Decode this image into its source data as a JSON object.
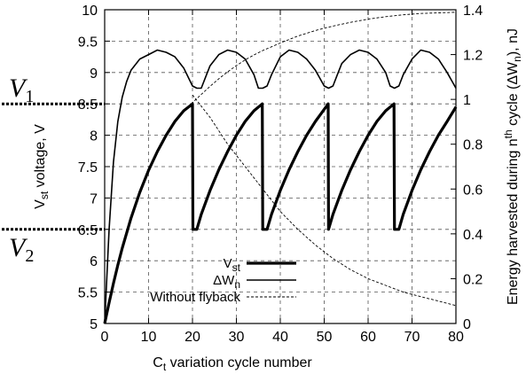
{
  "chart_data": {
    "type": "line",
    "xlabel": {
      "main": "C",
      "sub": "t",
      "rest": " variation cycle number"
    },
    "ylabel_left": {
      "main": "V",
      "sub": "st",
      "rest": " voltage, V"
    },
    "ylabel_right": {
      "pre": "Energy harvested during n",
      "sup": "th",
      "mid": " cycle (ΔW",
      "sub": "n",
      "post": "), nJ"
    },
    "xlim": [
      0,
      80
    ],
    "ylim_left": [
      5,
      10
    ],
    "ylim_right": [
      0,
      1.4
    ],
    "x_ticks": [
      "0",
      "10",
      "20",
      "30",
      "40",
      "50",
      "60",
      "70",
      "80"
    ],
    "y_left_ticks": [
      "5",
      "5.5",
      "6",
      "6.5",
      "7",
      "7.5",
      "8",
      "8.5",
      "9",
      "9.5",
      "10"
    ],
    "y_right_ticks": [
      "0",
      "0.2",
      "0.4",
      "0.6",
      "0.8",
      "1",
      "1.2",
      "1.4"
    ],
    "grid": true,
    "markers": [
      {
        "label": "V",
        "sub": "1",
        "y": 8.5
      },
      {
        "label": "V",
        "sub": "2",
        "y": 6.5
      }
    ],
    "series": [
      {
        "name": "Vst",
        "legend_main": "V",
        "legend_sub": "st",
        "axis": "left",
        "style": "thick",
        "x": [
          0,
          1,
          2,
          3,
          4,
          6,
          8,
          10,
          12,
          14,
          16,
          18,
          20,
          20.1,
          21,
          22,
          24,
          26,
          28,
          30,
          32,
          34,
          35.9,
          36,
          37,
          38,
          40,
          42,
          44,
          46,
          48,
          50.9,
          51,
          52,
          54,
          56,
          58,
          60,
          62,
          64,
          65.9,
          66,
          67,
          68,
          70,
          72,
          74,
          76,
          78,
          80
        ],
        "y": [
          5.0,
          5.33,
          5.64,
          5.93,
          6.2,
          6.68,
          7.09,
          7.44,
          7.74,
          8.0,
          8.22,
          8.39,
          8.5,
          6.5,
          6.5,
          6.74,
          7.12,
          7.45,
          7.74,
          8.0,
          8.22,
          8.39,
          8.5,
          6.5,
          6.5,
          6.74,
          7.12,
          7.45,
          7.74,
          8.0,
          8.22,
          8.5,
          6.5,
          6.74,
          7.12,
          7.45,
          7.74,
          8.0,
          8.22,
          8.39,
          8.5,
          6.5,
          6.5,
          6.74,
          7.12,
          7.45,
          7.74,
          8.0,
          8.22,
          8.45
        ]
      },
      {
        "name": "ΔWn",
        "legend_main": "ΔW",
        "legend_sub": "n",
        "axis": "right",
        "style": "medium",
        "x": [
          0,
          1,
          2,
          3,
          4,
          5,
          6,
          8,
          10,
          12,
          14,
          16,
          18,
          20,
          21,
          22,
          23,
          24,
          26,
          28,
          30,
          32,
          34,
          35,
          36,
          37,
          38,
          40,
          42,
          44,
          46,
          48,
          50,
          51,
          52,
          53,
          54,
          56,
          58,
          60,
          62,
          64,
          65,
          66,
          67,
          68,
          70,
          72,
          74,
          76,
          78,
          80
        ],
        "y": [
          0.0,
          0.42,
          0.72,
          0.9,
          1.01,
          1.08,
          1.13,
          1.18,
          1.2,
          1.22,
          1.21,
          1.19,
          1.14,
          1.06,
          1.05,
          1.05,
          1.1,
          1.15,
          1.2,
          1.22,
          1.21,
          1.18,
          1.11,
          1.05,
          1.05,
          1.06,
          1.11,
          1.19,
          1.22,
          1.21,
          1.18,
          1.13,
          1.06,
          1.05,
          1.06,
          1.11,
          1.16,
          1.2,
          1.22,
          1.21,
          1.18,
          1.12,
          1.06,
          1.05,
          1.06,
          1.11,
          1.18,
          1.22,
          1.21,
          1.18,
          1.12,
          1.05
        ]
      },
      {
        "name": "Without flyback",
        "legend_main": "Without flyback",
        "legend_sub": "",
        "axis": "left",
        "style": "thin-dashed",
        "x": [
          0,
          2,
          4,
          6,
          8,
          10,
          12,
          14,
          16,
          18,
          20,
          22,
          24,
          26,
          28,
          30,
          32,
          34,
          36,
          38,
          40,
          44,
          48,
          52,
          56,
          60,
          64,
          68,
          72,
          76,
          80
        ],
        "y": [
          5.0,
          5.64,
          6.2,
          6.68,
          7.09,
          7.44,
          7.74,
          8.0,
          8.22,
          8.39,
          8.52,
          8.65,
          8.78,
          8.9,
          9.01,
          9.11,
          9.2,
          9.28,
          9.35,
          9.41,
          9.47,
          9.58,
          9.67,
          9.74,
          9.8,
          9.85,
          9.89,
          9.92,
          9.94,
          9.95,
          9.96
        ]
      },
      {
        "name": "Without flyback energy",
        "axis": "right",
        "style": "thin-dashed",
        "x": [
          20,
          24,
          28,
          32,
          36,
          40,
          44,
          48,
          52,
          56,
          60,
          64,
          68,
          72,
          76,
          80
        ],
        "y": [
          1.02,
          0.92,
          0.8,
          0.7,
          0.6,
          0.5,
          0.42,
          0.35,
          0.29,
          0.24,
          0.2,
          0.17,
          0.14,
          0.12,
          0.1,
          0.08
        ]
      }
    ]
  }
}
